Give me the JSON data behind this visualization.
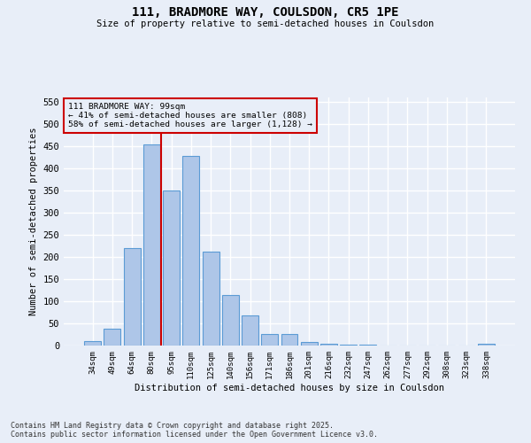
{
  "title_line1": "111, BRADMORE WAY, COULSDON, CR5 1PE",
  "title_line2": "Size of property relative to semi-detached houses in Coulsdon",
  "xlabel": "Distribution of semi-detached houses by size in Coulsdon",
  "ylabel": "Number of semi-detached properties",
  "categories": [
    "34sqm",
    "49sqm",
    "64sqm",
    "80sqm",
    "95sqm",
    "110sqm",
    "125sqm",
    "140sqm",
    "156sqm",
    "171sqm",
    "186sqm",
    "201sqm",
    "216sqm",
    "232sqm",
    "247sqm",
    "262sqm",
    "277sqm",
    "292sqm",
    "308sqm",
    "323sqm",
    "338sqm"
  ],
  "values": [
    10,
    38,
    220,
    455,
    350,
    428,
    213,
    115,
    68,
    27,
    27,
    8,
    5,
    3,
    2,
    0,
    0,
    0,
    0,
    0,
    4
  ],
  "bar_color": "#aec6e8",
  "bar_edge_color": "#5b9bd5",
  "property_bin_index": 4,
  "annotation_title": "111 BRADMORE WAY: 99sqm",
  "annotation_line1": "← 41% of semi-detached houses are smaller (808)",
  "annotation_line2": "58% of semi-detached houses are larger (1,128) →",
  "annotation_color": "#cc0000",
  "vline_color": "#cc0000",
  "ylim": [
    0,
    560
  ],
  "yticks": [
    0,
    50,
    100,
    150,
    200,
    250,
    300,
    350,
    400,
    450,
    500,
    550
  ],
  "footer_line1": "Contains HM Land Registry data © Crown copyright and database right 2025.",
  "footer_line2": "Contains public sector information licensed under the Open Government Licence v3.0.",
  "background_color": "#e8eef8",
  "grid_color": "#ffffff"
}
